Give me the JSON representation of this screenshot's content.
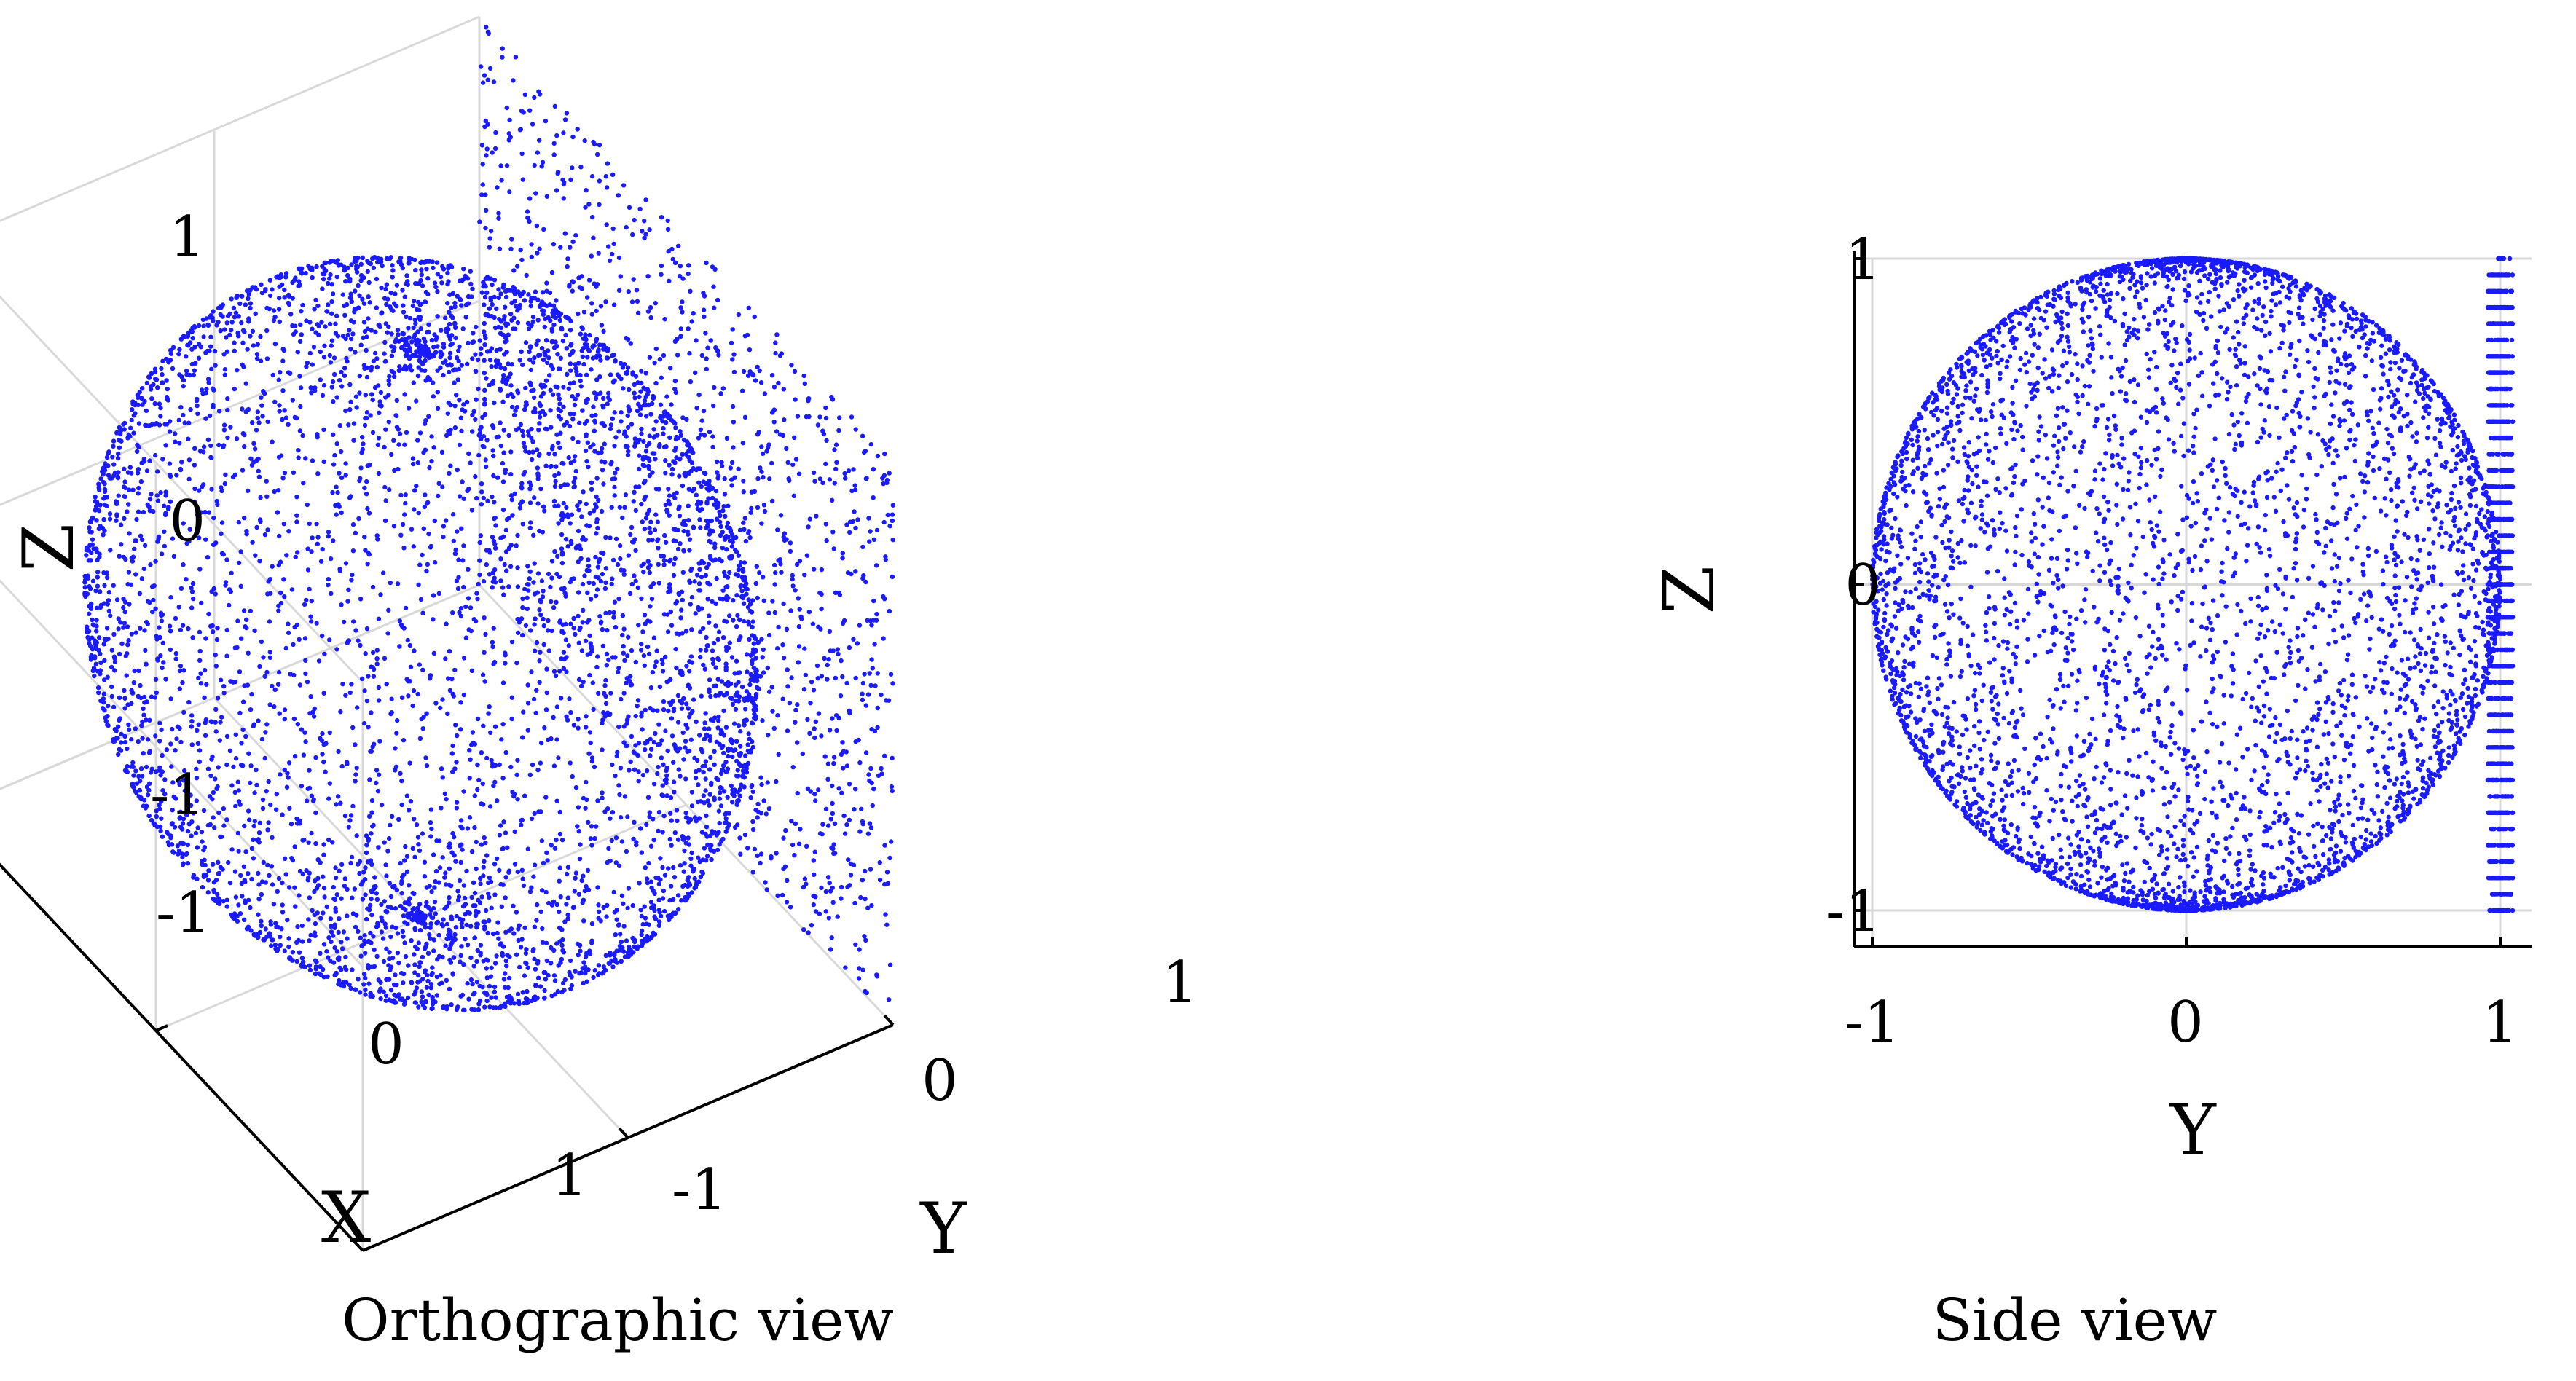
{
  "chart_data": [
    {
      "type": "scatter",
      "projection": "orthographic-3d",
      "caption": "Orthographic view",
      "xlabel": "X",
      "ylabel": "Y",
      "zlabel": "Z",
      "xlim": [
        -1,
        1
      ],
      "ylim": [
        -1,
        1
      ],
      "zlim": [
        -1,
        1
      ],
      "x_ticks": [
        "-1",
        "0",
        "1"
      ],
      "y_ticks": [
        "-1",
        "0",
        "1"
      ],
      "z_ticks": [
        "-1",
        "0",
        "1"
      ],
      "grid": true,
      "marker_color": "#1a1aff",
      "series": [
        {
          "shape": "unit-sphere-surface",
          "center": [
            0,
            0,
            0
          ],
          "radius": 1
        },
        {
          "shape": "plane",
          "y": 1,
          "x_range": [
            -1,
            1
          ],
          "z_range": [
            -1,
            1
          ]
        }
      ]
    },
    {
      "type": "scatter",
      "projection": "side",
      "caption": "Side view",
      "xlabel": "Y",
      "ylabel": "Z",
      "xlim": [
        -1,
        1
      ],
      "ylim": [
        -1,
        1
      ],
      "x_ticks": [
        "-1",
        "0",
        "1"
      ],
      "y_ticks": [
        "1",
        "0",
        "-1"
      ],
      "grid": true,
      "marker_color": "#1a1aff",
      "series": [
        {
          "shape": "unit-sphere-surface",
          "center": [
            0,
            0,
            0
          ],
          "radius": 1
        },
        {
          "shape": "plane",
          "y": 1,
          "z_range": [
            -1,
            1
          ]
        }
      ]
    }
  ]
}
